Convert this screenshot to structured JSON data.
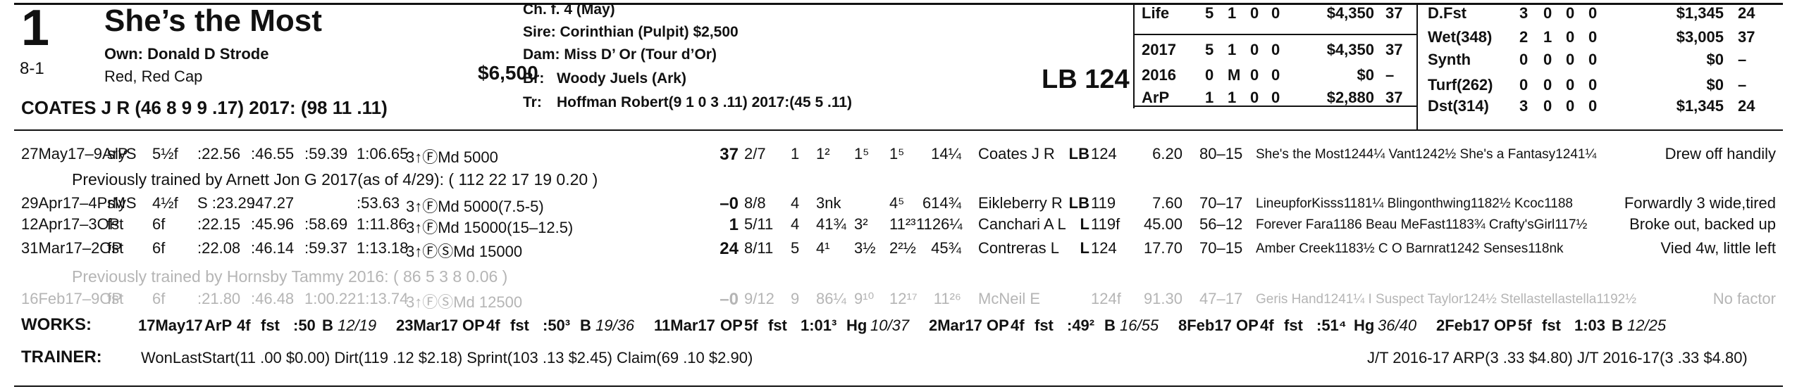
{
  "header": {
    "program_number": "1",
    "horse_name": "She’s the Most",
    "odds": "8-1",
    "owner": "Own: Donald D Strode",
    "silks": "Red, Red Cap",
    "claim_price": "$6,500",
    "jockey_line": "COATES J R (46 8 9 9 .17) 2017: (98 11 .11)",
    "description": "Ch. f. 4 (May)",
    "sire": "Sire: Corinthian (Pulpit) $2,500",
    "dam": "Dam: Miss D’ Or (Tour d’Or)",
    "breeder_label": "Br:",
    "breeder": "Woody Juels (Ark)",
    "trainer_label": "Tr:",
    "trainer": "Hoffman Robert(9 1 0 3 .11) 2017:(45 5 .11)",
    "weight": "LB 124"
  },
  "record_left": [
    {
      "label": "Life",
      "starts": "5",
      "w": "1",
      "p": "0",
      "s": "0",
      "earn": "$4,350",
      "speed": "37"
    },
    {
      "label": "2017",
      "starts": "5",
      "w": "1",
      "p": "0",
      "s": "0",
      "earn": "$4,350",
      "speed": "37"
    },
    {
      "label": "2016",
      "starts": "0",
      "w": "M",
      "p": "0",
      "s": "0",
      "earn": "$0",
      "speed": "–"
    },
    {
      "label": "ArP",
      "starts": "1",
      "w": "1",
      "p": "0",
      "s": "0",
      "earn": "$2,880",
      "speed": "37"
    }
  ],
  "record_right": [
    {
      "label": "D.Fst",
      "starts": "3",
      "w": "0",
      "p": "0",
      "s": "0",
      "earn": "$1,345",
      "speed": "24"
    },
    {
      "label": "Wet(348)",
      "starts": "2",
      "w": "1",
      "p": "0",
      "s": "0",
      "earn": "$3,005",
      "speed": "37"
    },
    {
      "label": "Synth",
      "starts": "0",
      "w": "0",
      "p": "0",
      "s": "0",
      "earn": "$0",
      "speed": "–"
    },
    {
      "label": "Turf(262)",
      "starts": "0",
      "w": "0",
      "p": "0",
      "s": "0",
      "earn": "$0",
      "speed": "–"
    },
    {
      "label": "Dst(314)",
      "starts": "3",
      "w": "0",
      "p": "0",
      "s": "0",
      "earn": "$1,345",
      "speed": "24"
    }
  ],
  "past_performances": [
    {
      "date": "27May17–9ArP",
      "cond": "slyS",
      "dist": "5½f",
      "f1": ":22.56",
      "f2": ":46.55",
      "f3": ":59.39",
      "fin": "1:06.65",
      "race": "3↑ⒻMd 5000",
      "spd": "37",
      "pp": "2/7",
      "st": "1",
      "c1": "1²",
      "c2": "1⁵",
      "str": "1⁵",
      "finish": "14¼",
      "jockey": "Coates J R",
      "med": "LB",
      "wt": "124",
      "odds": "6.20",
      "pace": "80–15",
      "comment": "She's the Most1244¼ Vant1242½ She's a Fantasy1241¼",
      "remark": "Drew off handily"
    },
    {
      "date": "29Apr17–4PrM",
      "cond": "slyS",
      "dist": "4½f",
      "f1": "S :23.29",
      "f2": ":47.27",
      "f3": "",
      "fin": ":53.63",
      "race": "3↑ⒻMd 5000(7.5-5)",
      "spd": "–0",
      "pp": "8/8",
      "st": "4",
      "c1": "3nk",
      "c2": "",
      "str": "4⁵",
      "finish": "614¾",
      "jockey": "Eikleberry R",
      "med": "LB",
      "wt": "119",
      "odds": "7.60",
      "pace": "70–17",
      "comment": "LineupforKisss1181¼ Blingonthwing1182½ Kcoc1188",
      "remark": "Forwardly 3 wide,tired"
    },
    {
      "date": "12Apr17–3OP",
      "cond": "fst",
      "dist": "6f",
      "f1": ":22.15",
      "f2": ":45.96",
      "f3": ":58.69",
      "fin": "1:11.86",
      "race": "3↑ⒻMd 15000(15–12.5)",
      "spd": "1",
      "pp": "5/11",
      "st": "4",
      "c1": "41¾",
      "c2": "3²",
      "str": "11²³",
      "finish": "1126¼",
      "jockey": "Canchari A L",
      "med": "L",
      "wt": "119f",
      "odds": "45.00",
      "pace": "56–12",
      "comment": "Forever Fara1186 Beau MeFast1183¾ Crafty'sGirl117½",
      "remark": "Broke out, backed up"
    },
    {
      "date": "31Mar17–2OP",
      "cond": "fst",
      "dist": "6f",
      "f1": ":22.08",
      "f2": ":46.14",
      "f3": ":59.37",
      "fin": "1:13.18",
      "race": "3↑ⒻⓈMd 15000",
      "spd": "24",
      "pp": "8/11",
      "st": "5",
      "c1": "4¹",
      "c2": "3½",
      "str": "2²½",
      "finish": "45¾",
      "jockey": "Contreras L",
      "med": "L",
      "wt": "124",
      "odds": "17.70",
      "pace": "70–15",
      "comment": "Amber Creek1183½ C O Barnrat1242 Senses118nk",
      "remark": "Vied 4w, little left"
    },
    {
      "date": "16Feb17–9OP",
      "cond": "fst",
      "dist": "6f",
      "f1": ":21.80",
      "f2": ":46.48",
      "f3": "1:00.22",
      "fin": "1:13.74",
      "race": "3↑ⒻⓈMd 12500",
      "spd": "–0",
      "pp": "9/12",
      "st": "9",
      "c1": "86¼",
      "c2": "9¹⁰",
      "str": "12¹⁷",
      "finish": "11²⁶",
      "jockey": "McNeil E",
      "med": "",
      "wt": "124f",
      "odds": "91.30",
      "pace": "47–17",
      "comment": "Geris Hand1241¼ I Suspect Taylor124½ Stellastellastella1192½",
      "remark": "No factor"
    }
  ],
  "trainer_notes": {
    "note1": "Previously trained by Arnett Jon G 2017(as of 4/29): ( 112 22 17 19 0.20 )",
    "note2": "Previously trained by Hornsby Tammy 2016: ( 86 5 3 8 0.06 )"
  },
  "works": {
    "label": "WORKS:",
    "entries": [
      {
        "date": "17May17",
        "track": "ArP",
        "dist": "4f",
        "surface": "fst",
        "time": ":50",
        "grade": "B",
        "rank": "12/19"
      },
      {
        "date": "23Mar17",
        "track": "OP",
        "dist": "4f",
        "surface": "fst",
        "time": ":50³",
        "grade": "B",
        "rank": "19/36"
      },
      {
        "date": "11Mar17",
        "track": "OP",
        "dist": "5f",
        "surface": "fst",
        "time": "1:01³",
        "grade": "Hg",
        "rank": "10/37"
      },
      {
        "date": "2Mar17",
        "track": "OP",
        "dist": "4f",
        "surface": "fst",
        "time": ":49²",
        "grade": "B",
        "rank": "16/55"
      },
      {
        "date": "8Feb17",
        "track": "OP",
        "dist": "4f",
        "surface": "fst",
        "time": ":51⁴",
        "grade": "Hg",
        "rank": "36/40"
      },
      {
        "date": "2Feb17",
        "track": "OP",
        "dist": "5f",
        "surface": "fst",
        "time": "1:03",
        "grade": "B",
        "rank": "12/25"
      }
    ]
  },
  "trainer_stats": {
    "label": "TRAINER:",
    "text": "WonLastStart(11 .00 $0.00) Dirt(119 .12 $2.18) Sprint(103 .13 $2.45) Claim(69 .10 $2.90)",
    "jt": "J/T 2016-17 ARP(3 .33 $4.80) J/T 2016-17(3 .33 $4.80)"
  }
}
